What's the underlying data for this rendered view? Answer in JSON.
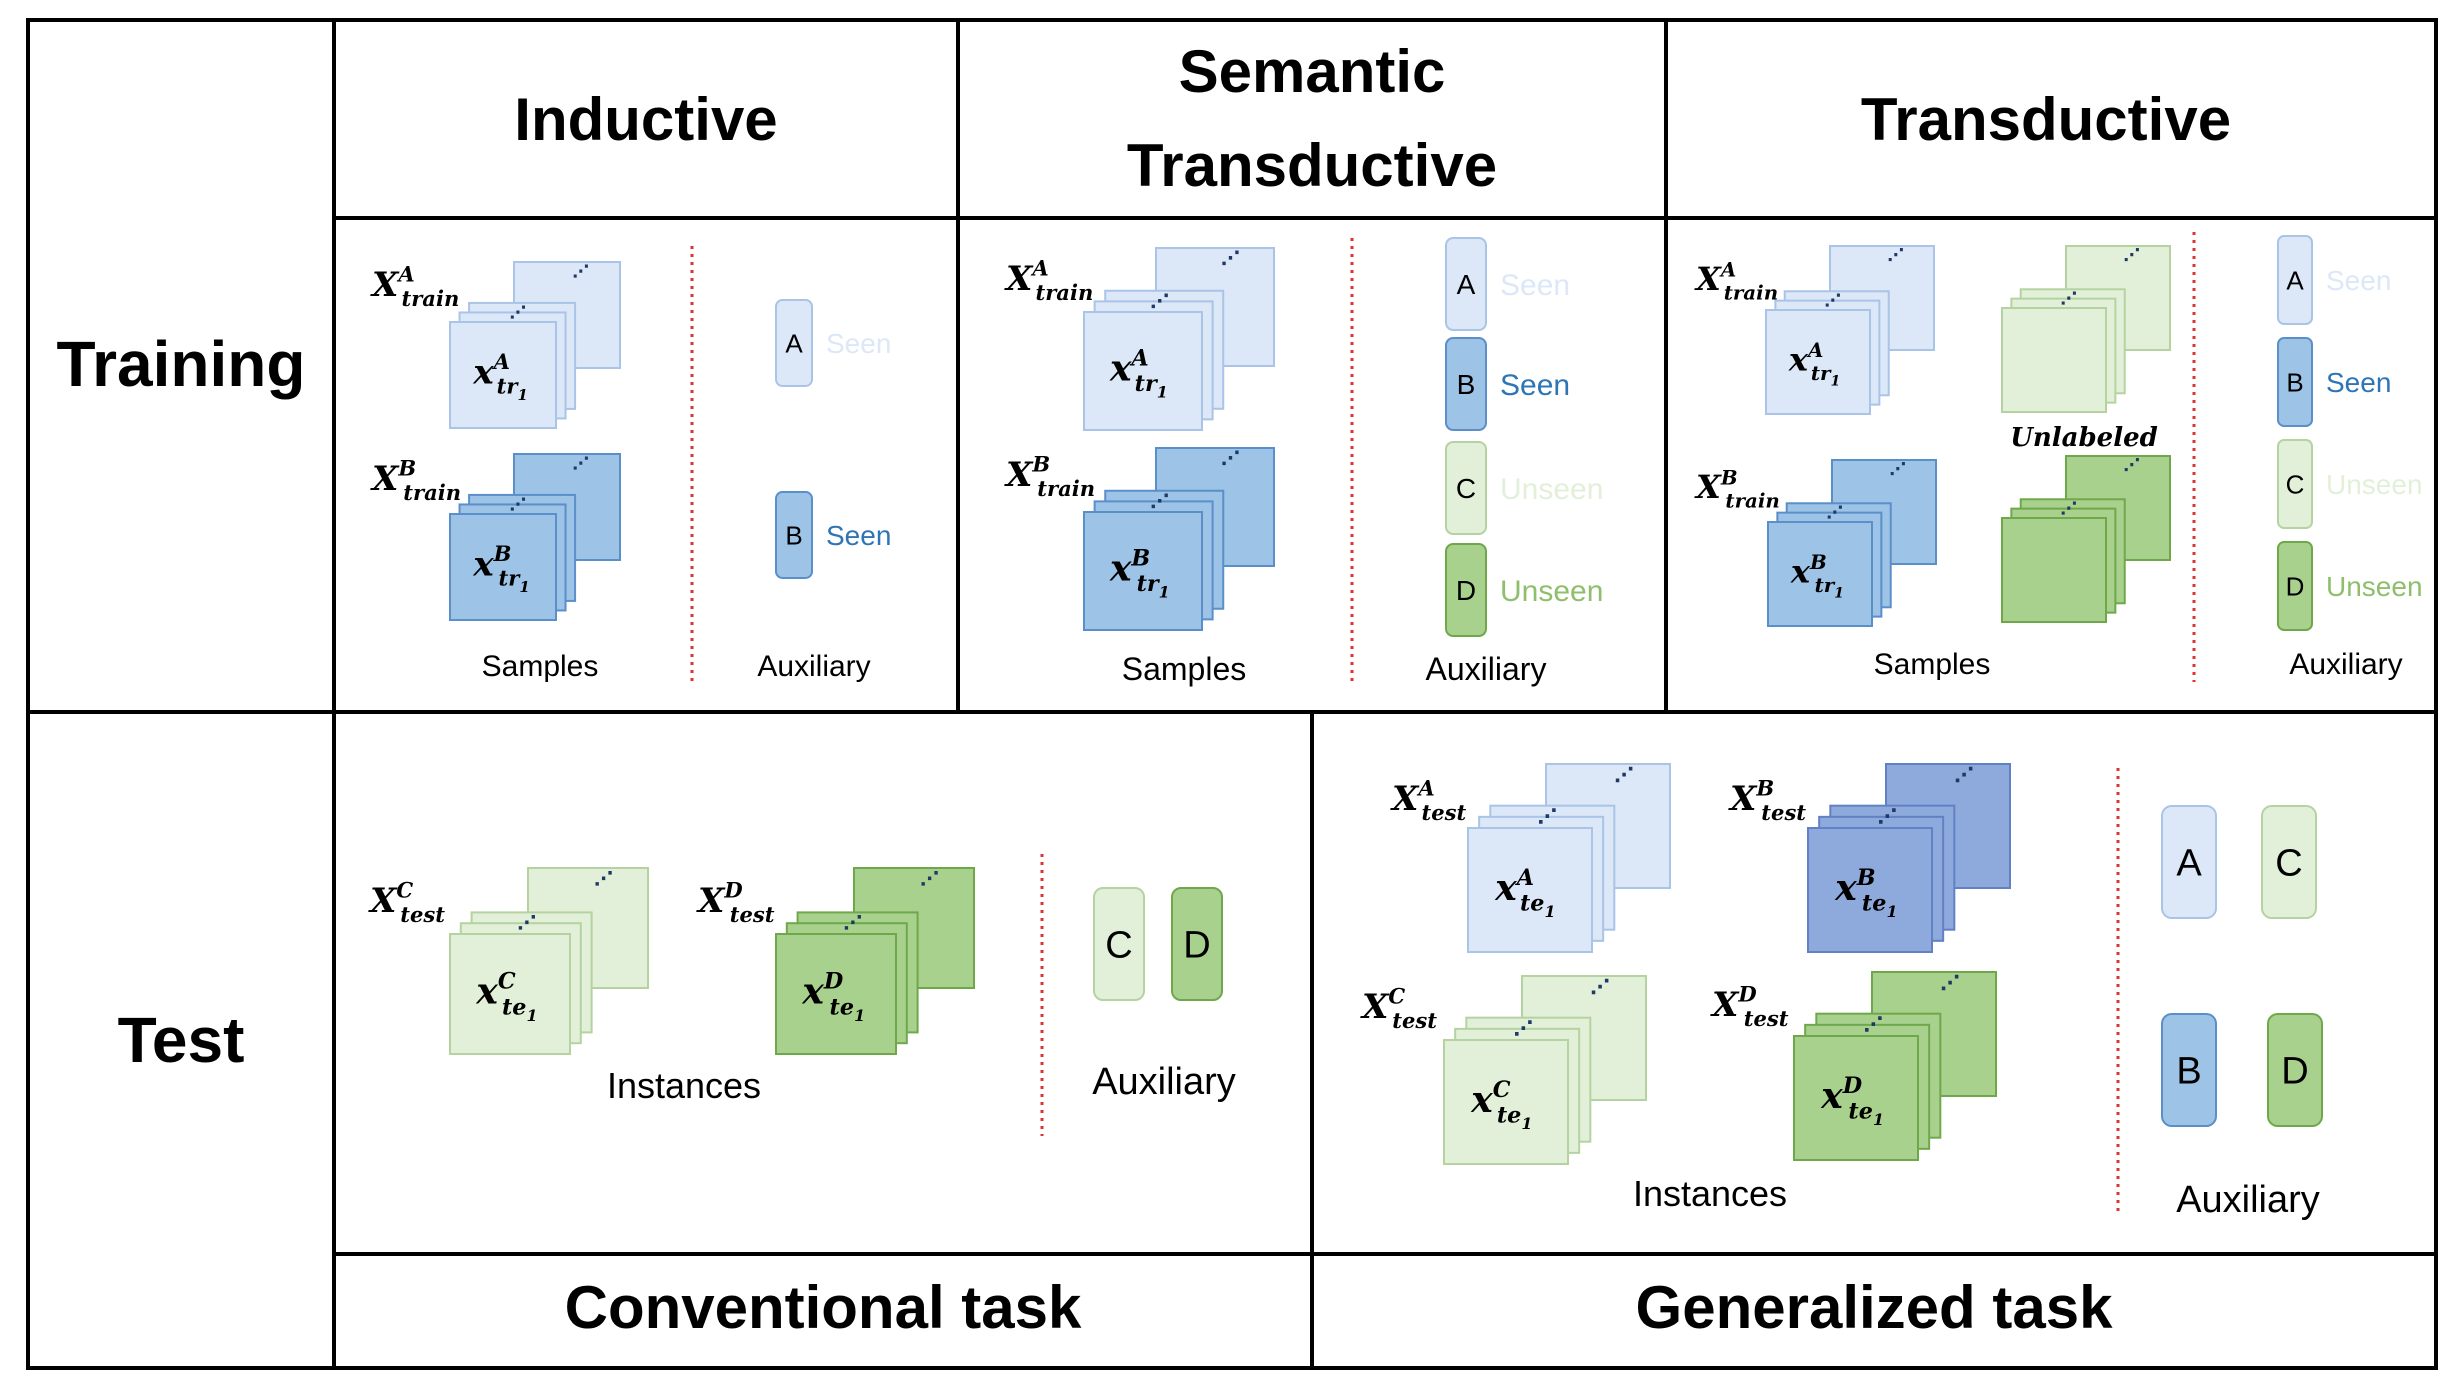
{
  "columns": {
    "inductive": "Inductive",
    "semantic_line1": "Semantic",
    "semantic_line2": "Transductive",
    "transductive": "Transductive"
  },
  "rows": {
    "training": "Training",
    "test": "Test"
  },
  "tasks": {
    "conventional": "Conventional task",
    "generalized": "Generalized task"
  },
  "labels": {
    "samples": "Samples",
    "auxiliary": "Auxiliary",
    "instances": "Instances",
    "unlabeled": "Unlabeled",
    "seen": "Seen",
    "unseen": "Unseen",
    "dots": "⋰"
  },
  "vars": {
    "X": "X",
    "x": "x",
    "train": "train",
    "test": "test",
    "tr": "tr",
    "te": "te",
    "one": "1",
    "A": "A",
    "B": "B",
    "C": "C",
    "D": "D"
  },
  "colors": {
    "blue_light": "#dce8f7",
    "blue_light_stroke": "#a9c4e6",
    "blue_mid": "#9dc3e6",
    "blue_mid_stroke": "#5b8fc9",
    "blue_dark": "#8ea9db",
    "blue_dark_stroke": "#6280c4",
    "green_light": "#e2f0d9",
    "green_light_stroke": "#b5d3a0",
    "green_mid": "#a9d18e",
    "green_mid_stroke": "#6fa84a",
    "seen_light_text": "#dce8f7",
    "seen_text": "#2e75b6",
    "unseen_light_text": "#e2f0d9",
    "unseen_text": "#8fbe6c",
    "divider": "#e03030",
    "grid": "#000000"
  }
}
